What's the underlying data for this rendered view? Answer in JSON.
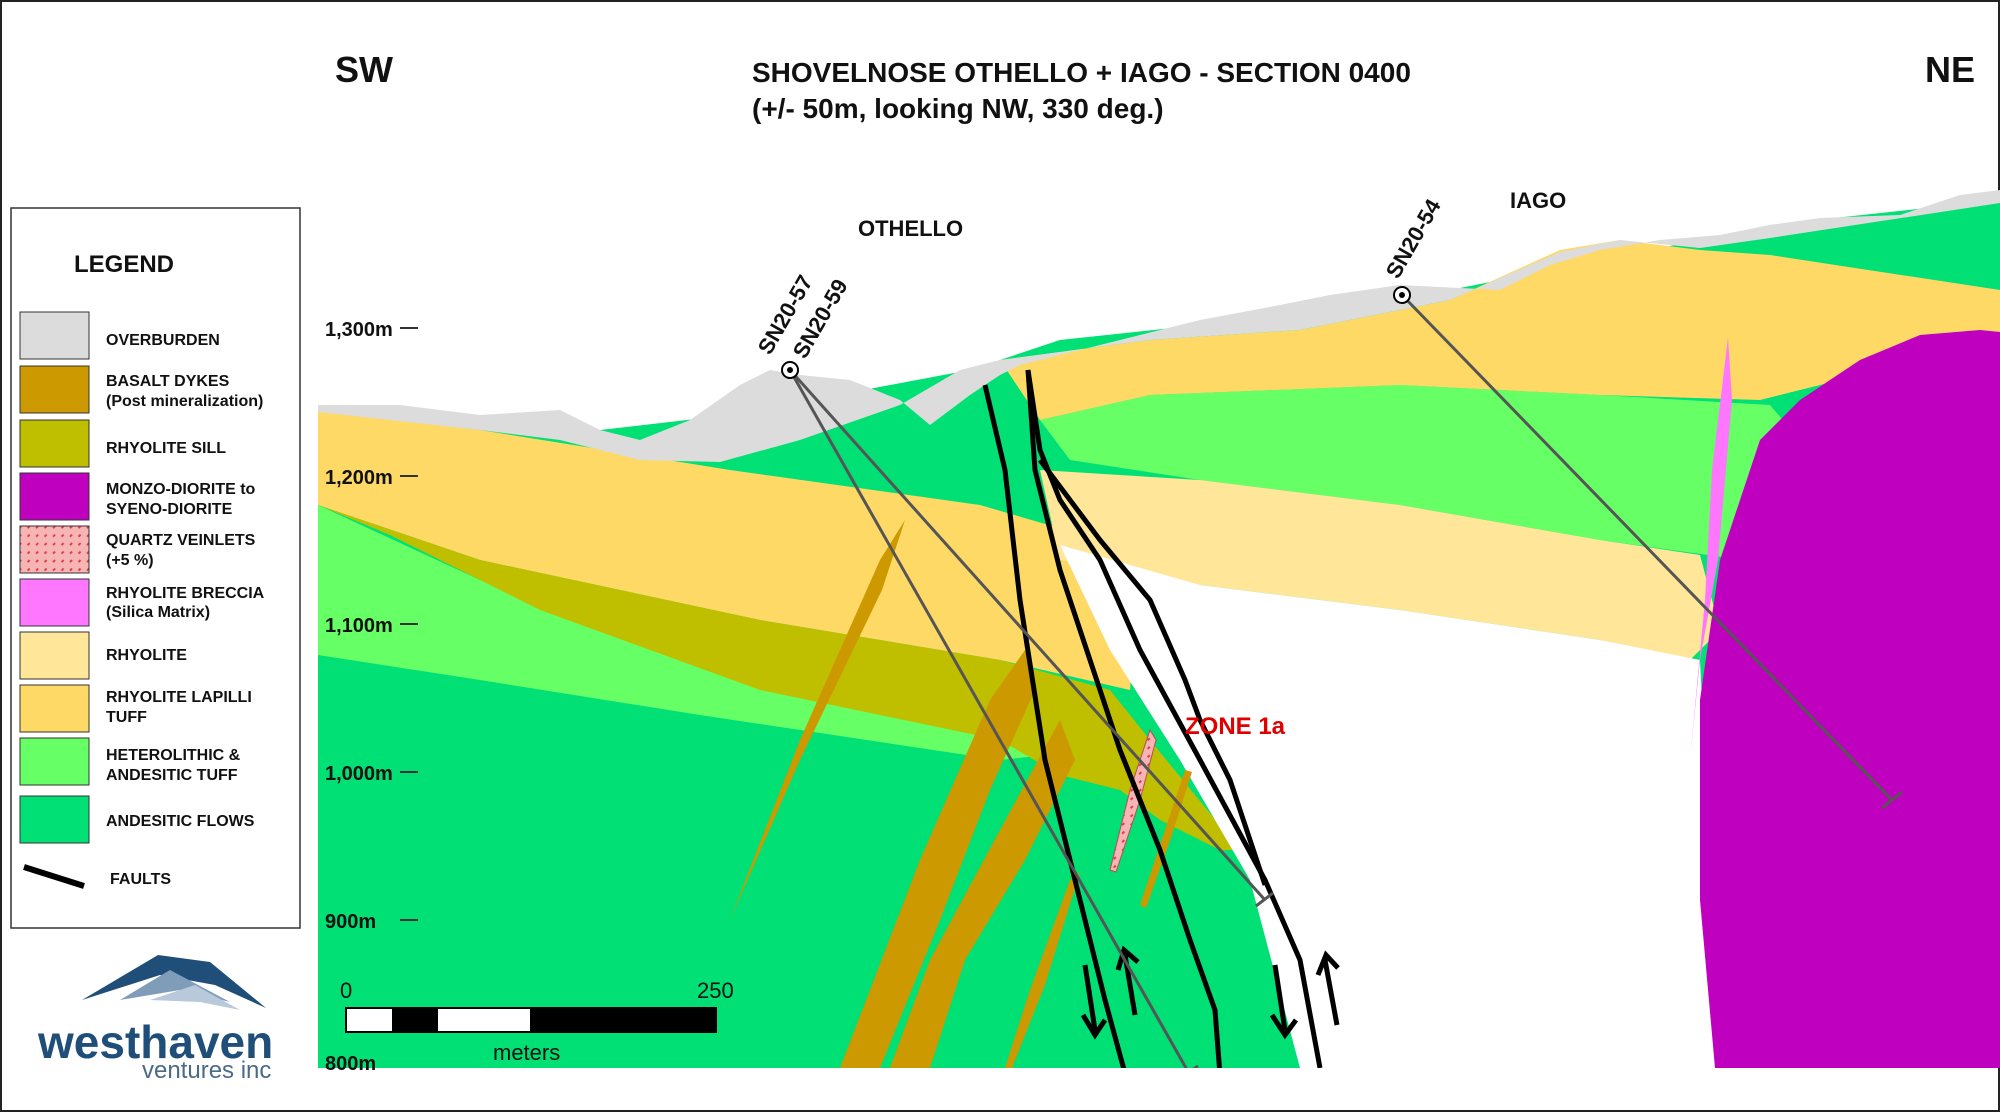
{
  "header": {
    "dir_left": "SW",
    "dir_right": "NE",
    "title_line1": "SHOVELNOSE OTHELLO + IAGO - SECTION 0400",
    "title_line2": "(+/- 50m, looking NW, 330 deg.)"
  },
  "section_labels": {
    "othello": "OTHELLO",
    "iago": "IAGO",
    "zone": "ZONE 1a"
  },
  "drillholes": [
    {
      "id": "SN20-57"
    },
    {
      "id": "SN20-59"
    },
    {
      "id": "SN20-54"
    }
  ],
  "elevations": [
    "1,300m",
    "1,200m",
    "1,100m",
    "1,000m",
    "900m",
    "800m"
  ],
  "legend": {
    "title": "LEGEND",
    "items": [
      {
        "line1": "OVERBURDEN",
        "line2": "",
        "color": "#DCDCDC",
        "icon": "swatch"
      },
      {
        "line1": "BASALT DYKES",
        "line2": "(Post mineralization)",
        "color": "#CC9900",
        "icon": "swatch"
      },
      {
        "line1": "RHYOLITE SILL",
        "line2": "",
        "color": "#BFBF00",
        "icon": "swatch"
      },
      {
        "line1": "MONZO-DIORITE to",
        "line2": "SYENO-DIORITE",
        "color": "#BF00BF",
        "icon": "swatch"
      },
      {
        "line1": "QUARTZ VEINLETS",
        "line2": "(+5 %)",
        "color": "#F7B4B4",
        "icon": "hatched-swatch"
      },
      {
        "line1": "RHYOLITE BRECCIA",
        "line2": "(Silica Matrix)",
        "color": "#FF77FF",
        "icon": "swatch"
      },
      {
        "line1": "RHYOLITE",
        "line2": "",
        "color": "#FFE699",
        "icon": "swatch"
      },
      {
        "line1": "RHYOLITE LAPILLI",
        "line2": "TUFF",
        "color": "#FFD966",
        "icon": "swatch"
      },
      {
        "line1": "HETEROLITHIC &",
        "line2": "ANDESITIC TUFF",
        "color": "#66FF66",
        "icon": "swatch"
      },
      {
        "line1": "ANDESITIC FLOWS",
        "line2": "",
        "color": "#00E074",
        "icon": "swatch"
      },
      {
        "line1": "FAULTS",
        "line2": "",
        "color": "#000000",
        "icon": "fault-line"
      }
    ]
  },
  "scale_bar": {
    "start": "0",
    "end": "250",
    "unit": "meters"
  },
  "logo": {
    "name": "westhaven",
    "tagline": "ventures inc",
    "color": "#1F4E79"
  }
}
